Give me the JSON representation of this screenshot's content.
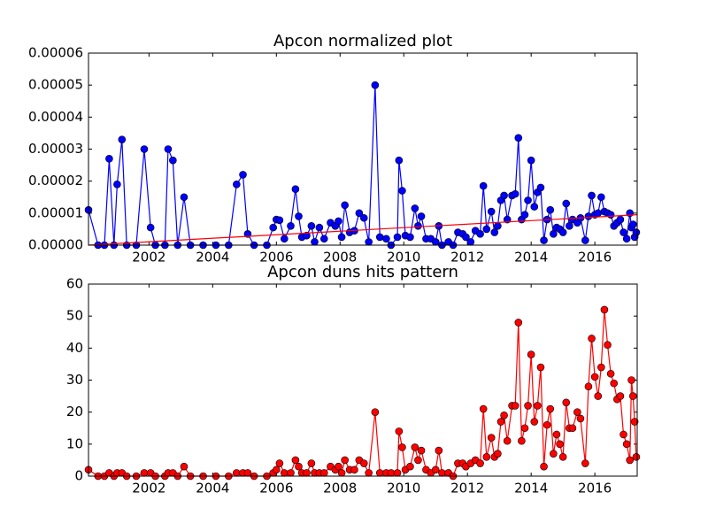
{
  "chart_data": [
    {
      "type": "line",
      "title": "Apcon normalized plot",
      "xlim": [
        2000.1,
        2017.33
      ],
      "ylim": [
        0,
        6e-05
      ],
      "xticks": [
        2002,
        2004,
        2006,
        2008,
        2010,
        2012,
        2014,
        2016
      ],
      "yticks": [
        {
          "value": 0,
          "label": "0.00000"
        },
        {
          "value": 1e-05,
          "label": "0.00001"
        },
        {
          "value": 2e-05,
          "label": "0.00002"
        },
        {
          "value": 3e-05,
          "label": "0.00003"
        },
        {
          "value": 4e-05,
          "label": "0.00004"
        },
        {
          "value": 5e-05,
          "label": "0.00005"
        },
        {
          "value": 6e-05,
          "label": "0.00006"
        }
      ],
      "series": [
        {
          "color": "#0000ff",
          "marker": true,
          "x": [
            2000.1,
            2000.4,
            2000.6,
            2000.75,
            2000.9,
            2001.0,
            2001.15,
            2001.3,
            2001.6,
            2001.85,
            2002.05,
            2002.2,
            2002.5,
            2002.6,
            2002.75,
            2002.9,
            2003.1,
            2003.3,
            2003.7,
            2004.1,
            2004.5,
            2004.75,
            2004.95,
            2005.1,
            2005.3,
            2005.7,
            2005.9,
            2006.0,
            2006.1,
            2006.25,
            2006.45,
            2006.6,
            2006.7,
            2006.8,
            2006.95,
            2007.1,
            2007.2,
            2007.35,
            2007.5,
            2007.7,
            2007.85,
            2007.95,
            2008.05,
            2008.15,
            2008.3,
            2008.45,
            2008.6,
            2008.75,
            2008.9,
            2009.1,
            2009.25,
            2009.45,
            2009.6,
            2009.8,
            2009.85,
            2009.95,
            2010.05,
            2010.2,
            2010.35,
            2010.45,
            2010.55,
            2010.7,
            2010.85,
            2011.0,
            2011.1,
            2011.2,
            2011.4,
            2011.55,
            2011.7,
            2011.85,
            2011.95,
            2012.1,
            2012.25,
            2012.4,
            2012.5,
            2012.6,
            2012.75,
            2012.85,
            2012.95,
            2013.05,
            2013.15,
            2013.25,
            2013.4,
            2013.5,
            2013.6,
            2013.7,
            2013.8,
            2013.9,
            2014.0,
            2014.1,
            2014.2,
            2014.3,
            2014.4,
            2014.5,
            2014.6,
            2014.7,
            2014.8,
            2014.9,
            2015.0,
            2015.1,
            2015.2,
            2015.3,
            2015.45,
            2015.55,
            2015.7,
            2015.8,
            2015.9,
            2016.0,
            2016.1,
            2016.2,
            2016.3,
            2016.4,
            2016.5,
            2016.6,
            2016.7,
            2016.8,
            2016.9,
            2017.0,
            2017.1,
            2017.15,
            2017.2,
            2017.25,
            2017.3
          ],
          "values": [
            1.1e-05,
            0,
            0,
            2.7e-05,
            0,
            1.9e-05,
            3.3e-05,
            0,
            0,
            3e-05,
            5.5e-06,
            0,
            0,
            3e-05,
            2.65e-05,
            0,
            1.5e-05,
            0,
            0,
            0,
            0,
            1.9e-05,
            2.2e-05,
            3.5e-06,
            0,
            0,
            5.5e-06,
            8e-06,
            7.8e-06,
            2e-06,
            6e-06,
            1.75e-05,
            9e-06,
            2.5e-06,
            3e-06,
            6e-06,
            1e-06,
            5.5e-06,
            2e-06,
            7e-06,
            6e-06,
            7.5e-06,
            2.5e-06,
            1.25e-05,
            4e-06,
            4.5e-06,
            1e-05,
            8.5e-06,
            1e-06,
            5e-05,
            2.5e-06,
            2e-06,
            0,
            2.5e-06,
            2.65e-05,
            1.7e-05,
            3e-06,
            2.5e-06,
            1.15e-05,
            6e-06,
            9e-06,
            2e-06,
            2e-06,
            1e-06,
            6e-06,
            0,
            1e-06,
            0,
            4e-06,
            3.5e-06,
            2.5e-06,
            1e-06,
            4.5e-06,
            3.5e-06,
            1.85e-05,
            5e-06,
            1.05e-05,
            4e-06,
            6e-06,
            1.4e-05,
            1.55e-05,
            8e-06,
            1.55e-05,
            1.6e-05,
            3.35e-05,
            8e-06,
            9.5e-06,
            1.4e-05,
            2.65e-05,
            1.2e-05,
            1.65e-05,
            1.8e-05,
            1.5e-06,
            8e-06,
            1.1e-05,
            3.5e-06,
            5.5e-06,
            5e-06,
            4e-06,
            1.3e-05,
            6e-06,
            8e-06,
            7e-06,
            8.5e-06,
            1.5e-06,
            9e-06,
            1.55e-05,
            9.5e-06,
            1e-05,
            1.5e-05,
            1.05e-05,
            1e-05,
            9.5e-06,
            6e-06,
            7e-06,
            8e-06,
            4e-06,
            2e-06,
            1e-05,
            5.5e-06,
            6.5e-06,
            2.5e-06,
            4e-06
          ]
        },
        {
          "color": "#ff0000",
          "marker": false,
          "x": [
            2000.1,
            2017.33
          ],
          "values": [
            0,
            9.5e-06
          ]
        }
      ]
    },
    {
      "type": "line",
      "title": "Apcon duns hits pattern",
      "xlim": [
        2000.1,
        2017.33
      ],
      "ylim": [
        0,
        60
      ],
      "xticks": [
        2002,
        2004,
        2006,
        2008,
        2010,
        2012,
        2014,
        2016
      ],
      "yticks": [
        0,
        10,
        20,
        30,
        40,
        50,
        60
      ],
      "series": [
        {
          "color": "#ff0000",
          "marker": true,
          "x": [
            2000.1,
            2000.4,
            2000.6,
            2000.75,
            2000.9,
            2001.0,
            2001.15,
            2001.3,
            2001.6,
            2001.85,
            2002.05,
            2002.2,
            2002.5,
            2002.6,
            2002.75,
            2002.9,
            2003.1,
            2003.3,
            2003.7,
            2004.1,
            2004.5,
            2004.75,
            2004.95,
            2005.1,
            2005.3,
            2005.7,
            2005.9,
            2006.0,
            2006.1,
            2006.25,
            2006.45,
            2006.6,
            2006.7,
            2006.8,
            2006.95,
            2007.1,
            2007.2,
            2007.35,
            2007.5,
            2007.7,
            2007.85,
            2007.95,
            2008.05,
            2008.15,
            2008.3,
            2008.45,
            2008.6,
            2008.75,
            2008.9,
            2009.1,
            2009.25,
            2009.45,
            2009.6,
            2009.8,
            2009.85,
            2009.95,
            2010.05,
            2010.2,
            2010.35,
            2010.45,
            2010.55,
            2010.7,
            2010.85,
            2011.0,
            2011.1,
            2011.2,
            2011.4,
            2011.55,
            2011.7,
            2011.85,
            2011.95,
            2012.1,
            2012.25,
            2012.4,
            2012.5,
            2012.6,
            2012.75,
            2012.85,
            2012.95,
            2013.05,
            2013.15,
            2013.25,
            2013.4,
            2013.5,
            2013.6,
            2013.7,
            2013.8,
            2013.9,
            2014.0,
            2014.1,
            2014.2,
            2014.3,
            2014.4,
            2014.5,
            2014.6,
            2014.7,
            2014.8,
            2014.9,
            2015.0,
            2015.1,
            2015.2,
            2015.3,
            2015.45,
            2015.55,
            2015.7,
            2015.8,
            2015.9,
            2016.0,
            2016.1,
            2016.2,
            2016.3,
            2016.4,
            2016.5,
            2016.6,
            2016.7,
            2016.8,
            2016.9,
            2017.0,
            2017.1,
            2017.15,
            2017.2,
            2017.25,
            2017.3
          ],
          "values": [
            2,
            0,
            0,
            1,
            0,
            1,
            1,
            0,
            0,
            1,
            1,
            0,
            0,
            1,
            1,
            0,
            3,
            0,
            0,
            0,
            0,
            1,
            1,
            1,
            0,
            0,
            1,
            2,
            4,
            1,
            1,
            5,
            3,
            1,
            1,
            4,
            1,
            1,
            1,
            3,
            2,
            3,
            1,
            5,
            2,
            2,
            5,
            4,
            1,
            20,
            1,
            1,
            1,
            1,
            14,
            9,
            2,
            3,
            9,
            5,
            8,
            2,
            1,
            2,
            8,
            1,
            1,
            0,
            4,
            4,
            3,
            4,
            5,
            4,
            21,
            6,
            12,
            6,
            7,
            17,
            19,
            11,
            22,
            22,
            48,
            11,
            15,
            22,
            38,
            17,
            22,
            34,
            3,
            16,
            21,
            7,
            13,
            10,
            6,
            23,
            15,
            15,
            20,
            18,
            4,
            28,
            43,
            31,
            25,
            34,
            52,
            41,
            32,
            29,
            24,
            25,
            13,
            10,
            5,
            30,
            25,
            17,
            6
          ]
        }
      ]
    }
  ]
}
